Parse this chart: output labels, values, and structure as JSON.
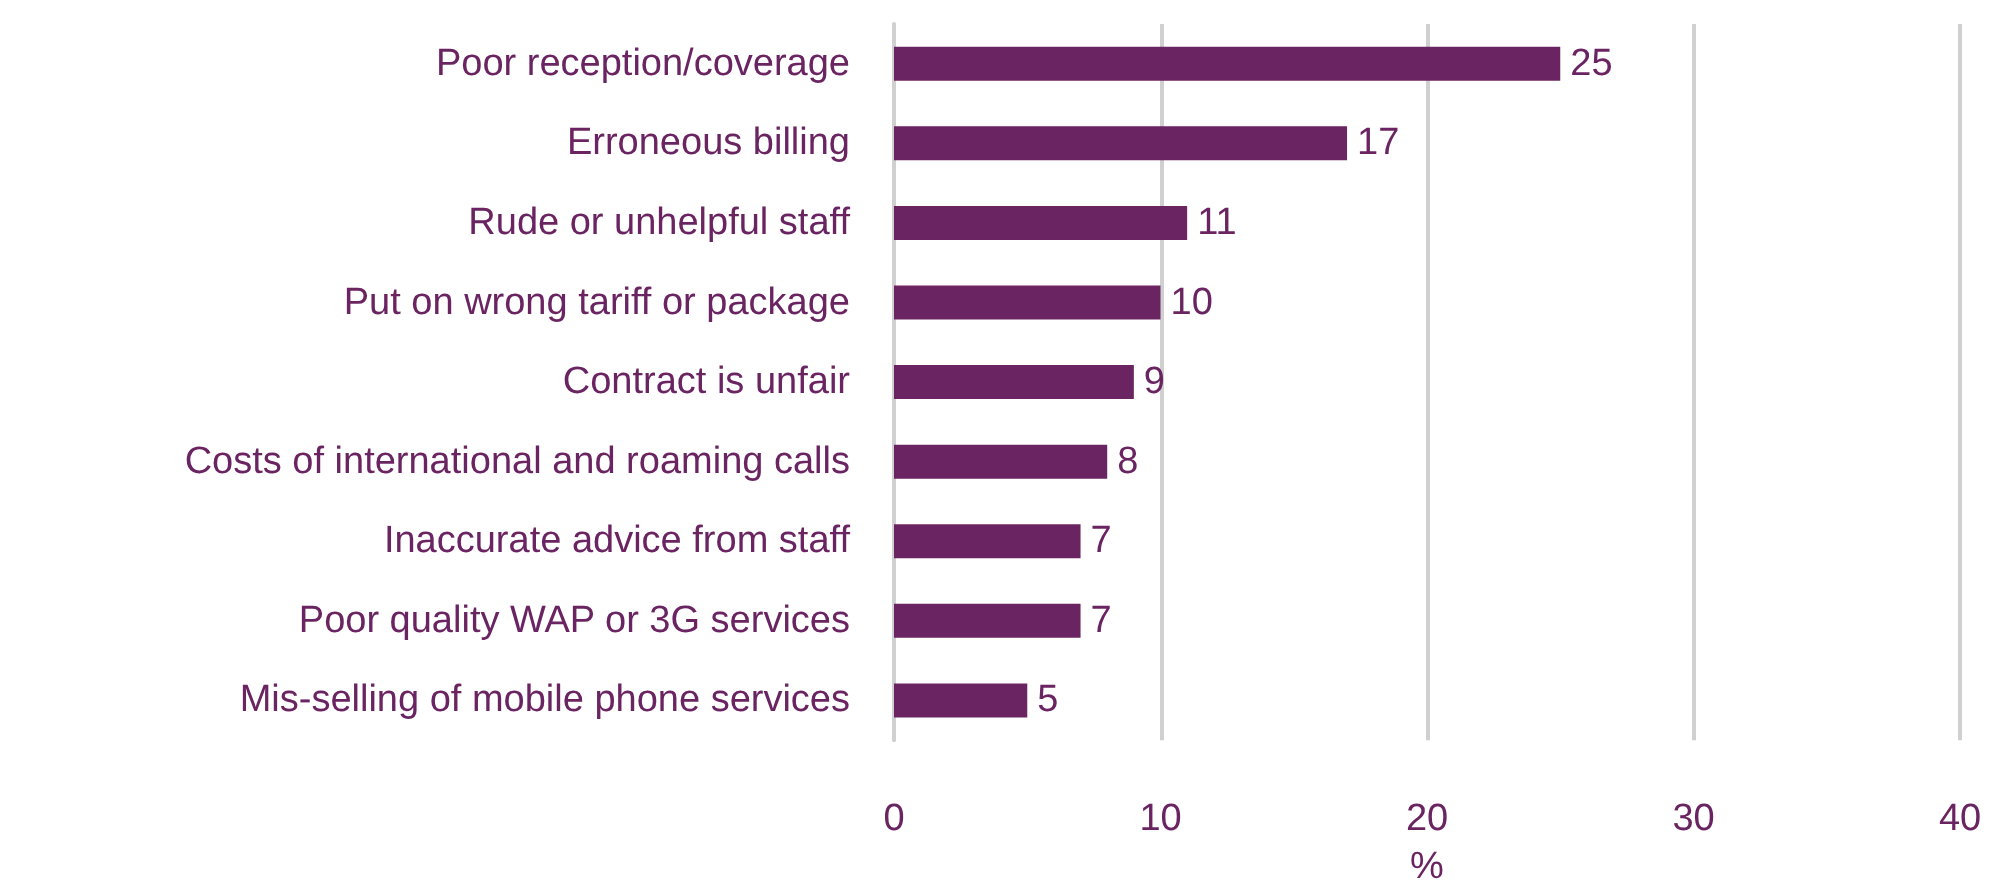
{
  "chart_data": {
    "type": "bar",
    "orientation": "horizontal",
    "xlabel": "%",
    "categories": [
      "Poor reception/coverage",
      "Erroneous billing",
      "Rude or unhelpful staff",
      "Put on wrong tariff or package",
      "Contract is unfair",
      "Costs of international and roaming calls",
      "Inaccurate advice from staff",
      "Poor quality WAP or 3G services",
      "Mis-selling of mobile phone services"
    ],
    "values": [
      25,
      17,
      11,
      10,
      9,
      8,
      7,
      7,
      5
    ],
    "color": "#6b2462",
    "xlim": [
      0,
      40
    ],
    "xticks": [
      0,
      10,
      20,
      30,
      40
    ],
    "grid": "x",
    "data_labels": true
  }
}
